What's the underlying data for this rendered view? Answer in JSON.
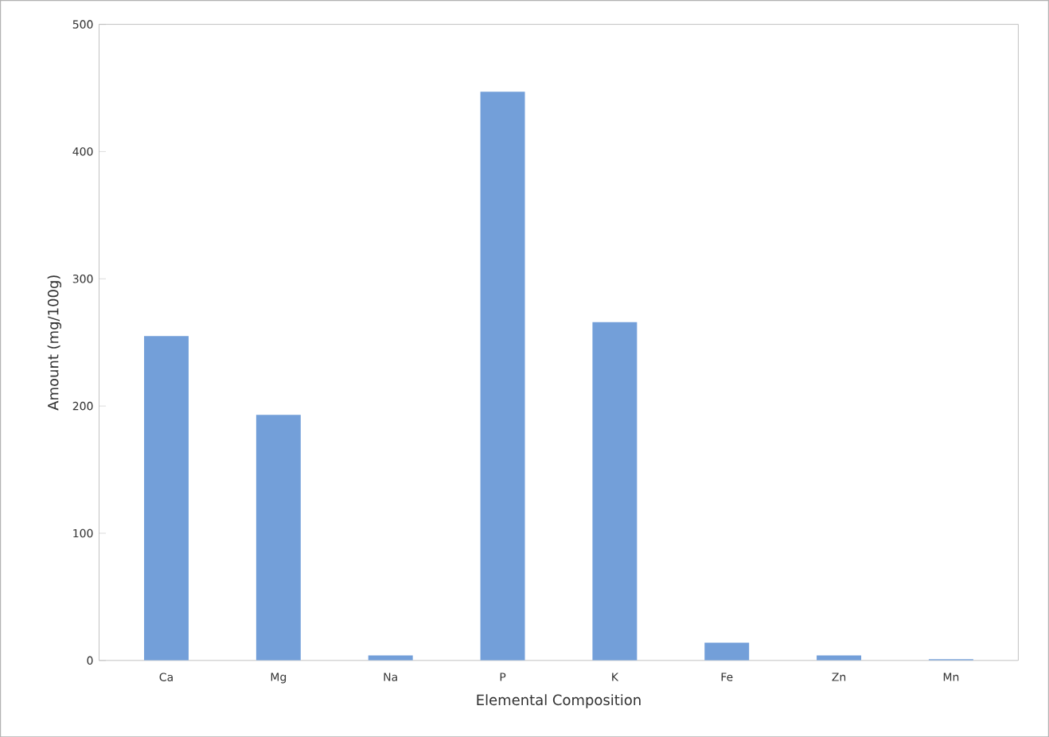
{
  "chart_data": {
    "type": "bar",
    "xlabel": "Elemental Composition",
    "ylabel": "Amount (mg/100g)",
    "categories": [
      "Ca",
      "Mg",
      "Na",
      "P",
      "K",
      "Fe",
      "Zn",
      "Mn"
    ],
    "values": [
      255,
      193,
      4,
      447,
      266,
      14,
      4,
      1
    ],
    "color": "#739fd9",
    "ylim": [
      0,
      500
    ],
    "yticks": [
      0,
      100,
      200,
      300,
      400,
      500
    ],
    "grid": false
  }
}
